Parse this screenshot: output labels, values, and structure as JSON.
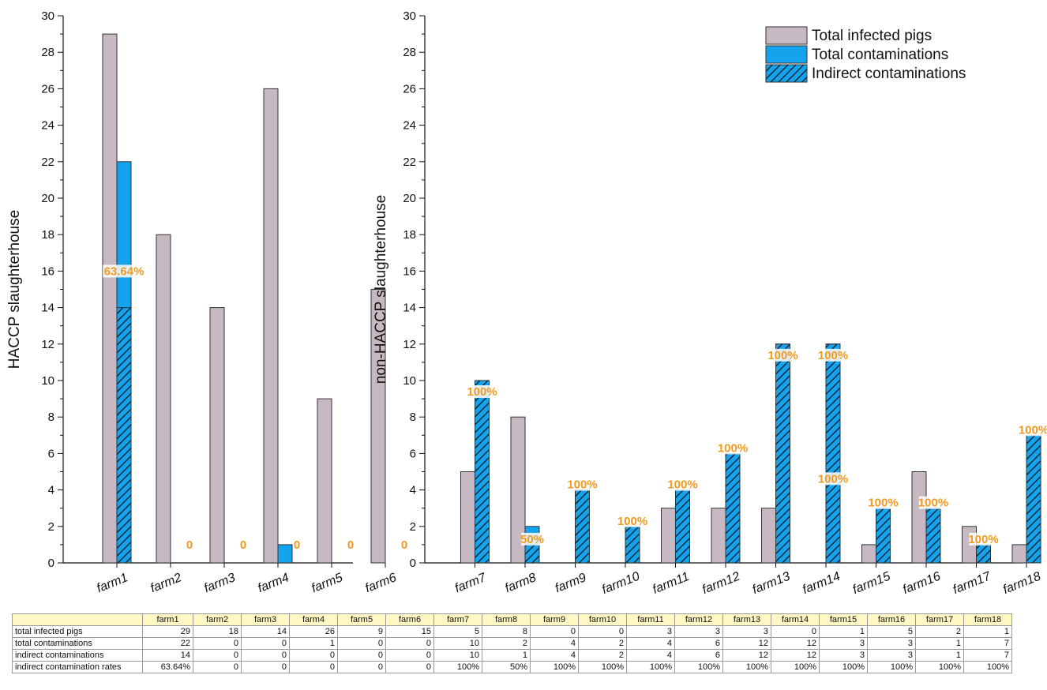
{
  "chart_data": {
    "type": "bar",
    "farms": [
      "farm1",
      "farm2",
      "farm3",
      "farm4",
      "farm5",
      "farm6",
      "farm7",
      "farm8",
      "farm9",
      "farm10",
      "farm11",
      "farm12",
      "farm13",
      "farm14",
      "farm15",
      "farm16",
      "farm17",
      "farm18"
    ],
    "series": [
      {
        "name": "Total infected pigs",
        "color": "#c6b9c4",
        "values": [
          29,
          18,
          14,
          26,
          9,
          15,
          5,
          8,
          0,
          0,
          3,
          3,
          3,
          0,
          1,
          5,
          2,
          1
        ]
      },
      {
        "name": "Total contaminations",
        "color": "#16a3ee",
        "values": [
          22,
          0,
          0,
          1,
          0,
          0,
          10,
          2,
          4,
          2,
          4,
          6,
          12,
          12,
          3,
          3,
          1,
          7
        ]
      },
      {
        "name": "Indirect contaminations",
        "color": "#16a3ee",
        "pattern": "hatched",
        "values": [
          14,
          0,
          0,
          0,
          0,
          0,
          10,
          1,
          4,
          2,
          4,
          6,
          12,
          12,
          3,
          3,
          1,
          7
        ]
      }
    ],
    "rate_labels": [
      "63.64%",
      "0",
      "0",
      "0",
      "0",
      "0",
      "100%",
      "50%",
      "100%",
      "100%",
      "100%",
      "100%",
      "100%",
      "100%",
      "100%",
      "100%",
      "100%",
      "100%"
    ],
    "extra_label": "100%",
    "panels": [
      {
        "ylabel": "HACCP slaughterhouse",
        "farm_range": [
          0,
          6
        ],
        "ylim": [
          0,
          30
        ]
      },
      {
        "ylabel": "non-HACCP slaughterhouse",
        "farm_range": [
          6,
          18
        ],
        "ylim": [
          0,
          30
        ]
      }
    ],
    "yticks": [
      0,
      2,
      4,
      6,
      8,
      10,
      12,
      14,
      16,
      18,
      20,
      22,
      24,
      26,
      28,
      30
    ],
    "legend": [
      "Total infected pigs",
      "Total contaminations",
      "Indirect contaminations"
    ]
  },
  "table": {
    "header": [
      "farm1",
      "farm2",
      "farm3",
      "farm4",
      "farm5",
      "farm6",
      "farm7",
      "farm8",
      "farm9",
      "farm10",
      "farm11",
      "farm12",
      "farm13",
      "farm14",
      "farm15",
      "farm16",
      "farm17",
      "farm18"
    ],
    "rows": [
      {
        "label": "total infected pigs",
        "values": [
          "29",
          "18",
          "14",
          "26",
          "9",
          "15",
          "5",
          "8",
          "0",
          "0",
          "3",
          "3",
          "3",
          "0",
          "1",
          "5",
          "2",
          "1"
        ]
      },
      {
        "label": "total contaminations",
        "values": [
          "22",
          "0",
          "0",
          "1",
          "0",
          "0",
          "10",
          "2",
          "4",
          "2",
          "4",
          "6",
          "12",
          "12",
          "3",
          "3",
          "1",
          "7"
        ]
      },
      {
        "label": "indirect contaminations",
        "values": [
          "14",
          "0",
          "0",
          "0",
          "0",
          "0",
          "10",
          "1",
          "4",
          "2",
          "4",
          "6",
          "12",
          "12",
          "3",
          "3",
          "1",
          "7"
        ]
      },
      {
        "label": "indirect contamination rates",
        "values": [
          "63.64%",
          "0",
          "0",
          "0",
          "0",
          "0",
          "100%",
          "50%",
          "100%",
          "100%",
          "100%",
          "100%",
          "100%",
          "100%",
          "100%",
          "100%",
          "100%",
          "100%"
        ]
      }
    ]
  }
}
